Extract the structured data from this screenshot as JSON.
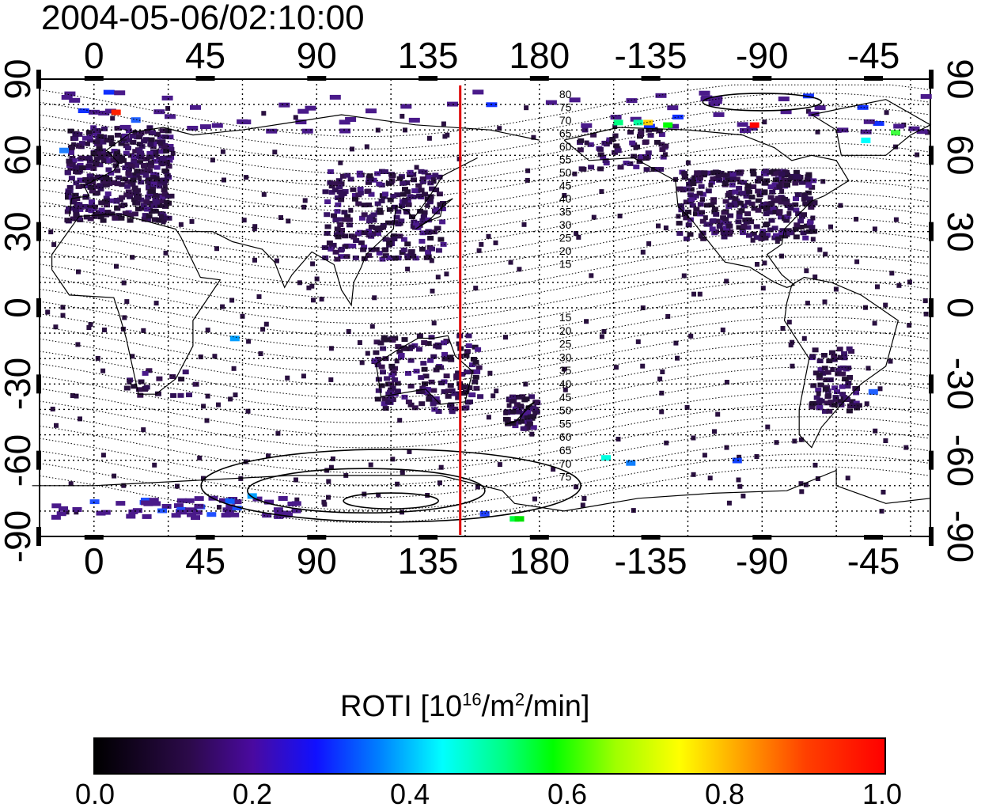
{
  "timestamp": "2004-05-06/02:10:00",
  "legend": {
    "label_prefix": "ROTI  [10",
    "label_exp1": "16",
    "label_mid": "/m",
    "label_exp2": "2",
    "label_suffix": "/min]",
    "ticks": [
      "0.0",
      "0.2",
      "0.4",
      "0.6",
      "0.8",
      "1.0"
    ],
    "range": [
      0.0,
      1.0
    ],
    "colormap": [
      "#000000",
      "#4a0aa0",
      "#1010ff",
      "#00ffff",
      "#00ff00",
      "#ffff00",
      "#ff0000"
    ]
  },
  "axes": {
    "lon_ticks": [
      "0",
      "45",
      "90",
      "135",
      "180",
      "-135",
      "-90",
      "-45"
    ],
    "lat_ticks_left": [
      "90",
      "60",
      "30",
      "0",
      "-30",
      "-60",
      "-90"
    ],
    "lat_ticks_right": [
      "90",
      "60",
      "30",
      "0",
      "-30",
      "-60",
      "-90"
    ],
    "lon_range": [
      -22,
      338
    ],
    "lat_range": [
      -90,
      90
    ]
  },
  "map": {
    "projection": "equirectangular",
    "grid": true,
    "terminator_lon": 148,
    "terminator_color": "#dd0000",
    "background": "#ffffff",
    "maglat_labels_north": [
      "80",
      "75",
      "70",
      "65",
      "60",
      "55",
      "50",
      "45",
      "40",
      "35",
      "30",
      "25",
      "20",
      "15"
    ],
    "maglat_labels_south": [
      "15",
      "20",
      "25",
      "30",
      "35",
      "40",
      "45",
      "50",
      "55",
      "60",
      "65",
      "70",
      "75"
    ]
  }
}
